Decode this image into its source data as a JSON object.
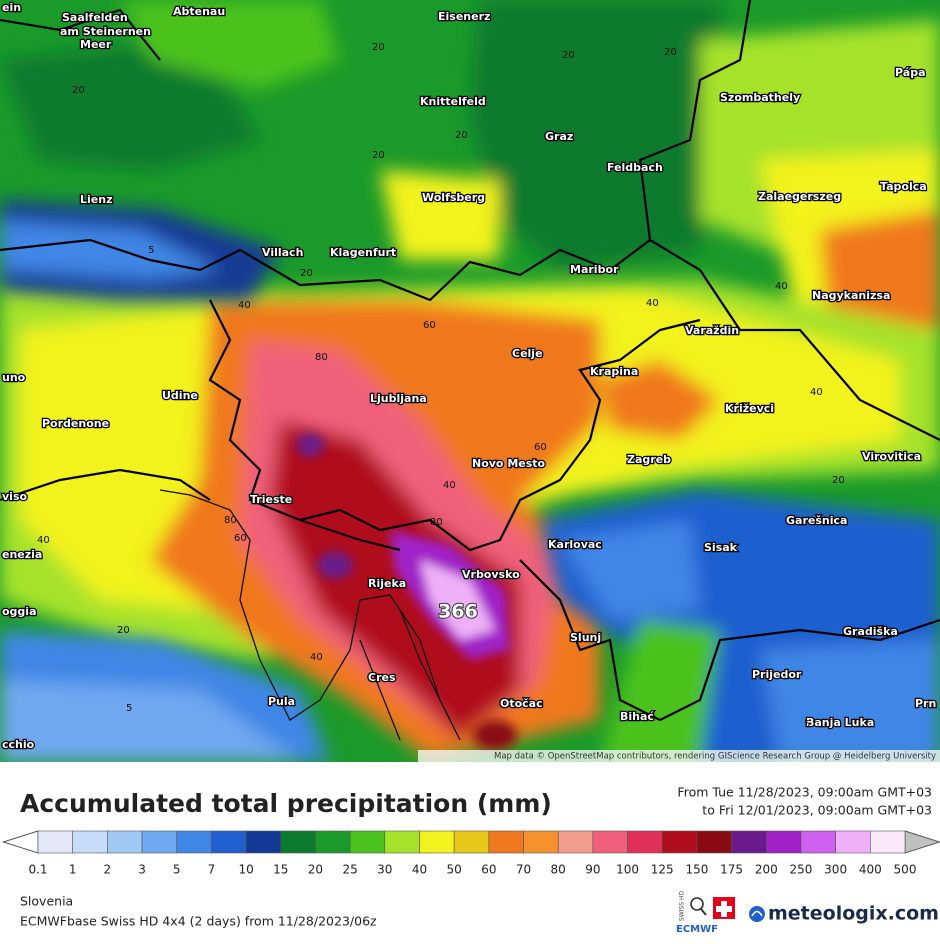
{
  "map": {
    "places": [
      "ein",
      "Saalfelden",
      "am Steinernen",
      "Meer",
      "Abtenau",
      "Eisenerz",
      "Knittelfeld",
      "Szombathely",
      "Pápa",
      "Graz",
      "Feldbach",
      "Lienz",
      "Wolfsberg",
      "Zalaegerszeg",
      "Tapolca",
      "Villach",
      "Klagenfurt",
      "Maribor",
      "Nagykanizsa",
      "Varaždin",
      "Celje",
      "Krapina",
      "uno",
      "Udine",
      "Ljubljana",
      "Križevci",
      "Pordenone",
      "Zagreb",
      "Novo Mesto",
      "Virovitica",
      "viso",
      "Trieste",
      "Garešnica",
      "enezia",
      "Karlovac",
      "Sisak",
      "Vrbovsko",
      "Rijeka",
      "oggia",
      "Slunj",
      "Gradiška",
      "Prijedor",
      "Cres",
      "Otočac",
      "Pula",
      "Bihać",
      "Prn",
      "Banja Luka",
      "cchio"
    ],
    "contour_labels": [
      20,
      20,
      20,
      20,
      20,
      20,
      5,
      20,
      40,
      60,
      40,
      80,
      40,
      60,
      40,
      80,
      60,
      40,
      20,
      40,
      5,
      5,
      20,
      40,
      80
    ],
    "max_value": 366,
    "attribution": "Map data © OpenStreetMap contributors, rendering GIScience Research Group @ Heidelberg University"
  },
  "legend": {
    "title": "Accumulated total precipitation (mm)",
    "period_from": "From Tue 11/28/2023, 09:00am GMT+03",
    "period_to": "to Fri 12/01/2023, 09:00am GMT+03",
    "labels": [
      0.1,
      1,
      2,
      3,
      5,
      7,
      10,
      15,
      20,
      25,
      30,
      40,
      50,
      60,
      70,
      80,
      90,
      100,
      125,
      150,
      175,
      200,
      250,
      300,
      400,
      500
    ],
    "colors": [
      "#e6e6fa",
      "#c6dcf8",
      "#a0c8f5",
      "#70a8f0",
      "#3f86e6",
      "#1f5fcf",
      "#123a94",
      "#0c7a2e",
      "#1a9a2a",
      "#4cc21f",
      "#a6e22a",
      "#f2f21e",
      "#e8c81a",
      "#f0781e",
      "#f5922e",
      "#f29c8c",
      "#f0607a",
      "#e0305a",
      "#b00d1e",
      "#8a0a14",
      "#6a1a8a",
      "#a020c8",
      "#d060f0",
      "#f0b0f8",
      "#f8e8f8"
    ],
    "below_color": "#ffffff",
    "above_color": "#c0c0c0"
  },
  "footer": {
    "region": "Slovenia",
    "model": "ECMWFbase Swiss HD 4x4 (2 days) from  11/28/2023/06z",
    "brand": "meteologix.com",
    "badge_top": "SWISS HD",
    "badge_bottom": "ECMWF"
  }
}
